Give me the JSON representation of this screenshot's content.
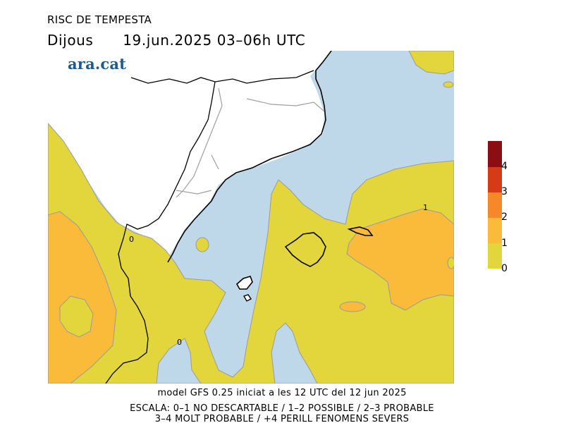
{
  "header": {
    "title": "RISC DE TEMPESTA",
    "day": "Dijous",
    "date_time": "19.jun.2025 03–06h UTC"
  },
  "logo": {
    "text": "ara.cat"
  },
  "legend": {
    "levels": [
      {
        "label": "4",
        "color": "#8b0f12"
      },
      {
        "label": "3",
        "color": "#d73a17"
      },
      {
        "label": "2",
        "color": "#f5892a"
      },
      {
        "label": "1",
        "color": "#fbbb3a"
      },
      {
        "label": "0",
        "color": "#e2d63c"
      }
    ],
    "sea_color": "#bfd8e9"
  },
  "contour_labels": [
    "1",
    "0",
    "0"
  ],
  "footer": {
    "model": "model GFS 0.25 iniciat a les 12 UTC del 12 jun 2025",
    "scale_line1": "ESCALA: 0–1 NO DESCARTABLE / 1–2 POSSIBLE / 2–3 PROBABLE",
    "scale_line2": "3–4 MOLT PROBABLE / +4 PERILL FENOMENS SEVERS"
  }
}
